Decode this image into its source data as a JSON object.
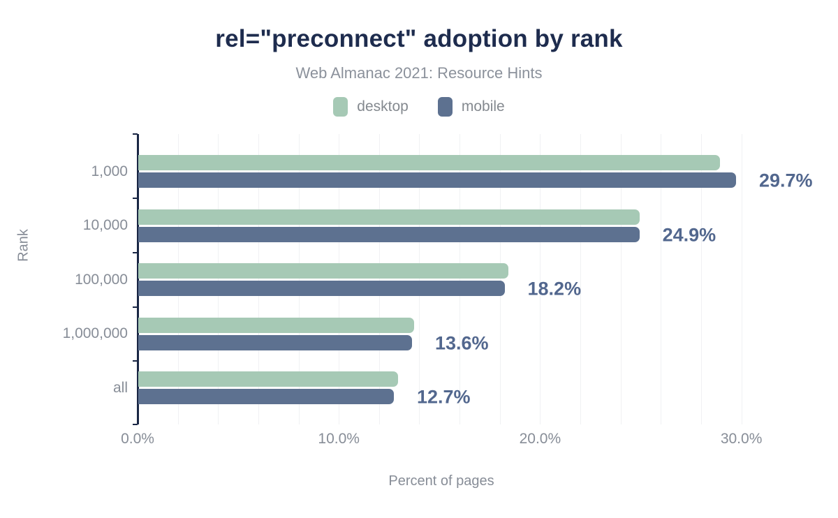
{
  "header": {
    "title": "rel=\"preconnect\" adoption by rank",
    "subtitle": "Web Almanac 2021: Resource Hints"
  },
  "legend": {
    "items": [
      {
        "label": "desktop",
        "color": "#a6c9b5"
      },
      {
        "label": "mobile",
        "color": "#5d7190"
      }
    ]
  },
  "colors": {
    "title": "#1e2c4e",
    "axis_line": "#1a2745",
    "desktop_bar": "#a6c9b5",
    "mobile_bar": "#5d7190",
    "value_label": "#52678e",
    "tick_text": "#878d97",
    "gridline": "#f0f1f3"
  },
  "chart_data": {
    "type": "bar",
    "orientation": "horizontal",
    "title": "rel=\"preconnect\" adoption by rank",
    "subtitle": "Web Almanac 2021: Resource Hints",
    "categories": [
      "1,000",
      "10,000",
      "100,000",
      "1,000,000",
      "all"
    ],
    "series": [
      {
        "name": "desktop",
        "color": "#a6c9b5",
        "values": [
          28.9,
          24.9,
          18.4,
          13.7,
          12.9
        ]
      },
      {
        "name": "mobile",
        "color": "#5d7190",
        "values": [
          29.7,
          24.9,
          18.2,
          13.6,
          12.7
        ]
      }
    ],
    "data_labels": [
      "29.7%",
      "24.9%",
      "18.2%",
      "13.6%",
      "12.7%"
    ],
    "data_labels_series": "mobile",
    "xlabel": "Percent of pages",
    "ylabel": "Rank",
    "x_ticks": [
      {
        "value": 0,
        "label": "0.0%"
      },
      {
        "value": 10,
        "label": "10.0%"
      },
      {
        "value": 20,
        "label": "20.0%"
      },
      {
        "value": 30,
        "label": "30.0%"
      }
    ],
    "xlim": [
      0,
      32.1
    ],
    "grid_step": 2,
    "grid": true,
    "legend_position": "top"
  }
}
